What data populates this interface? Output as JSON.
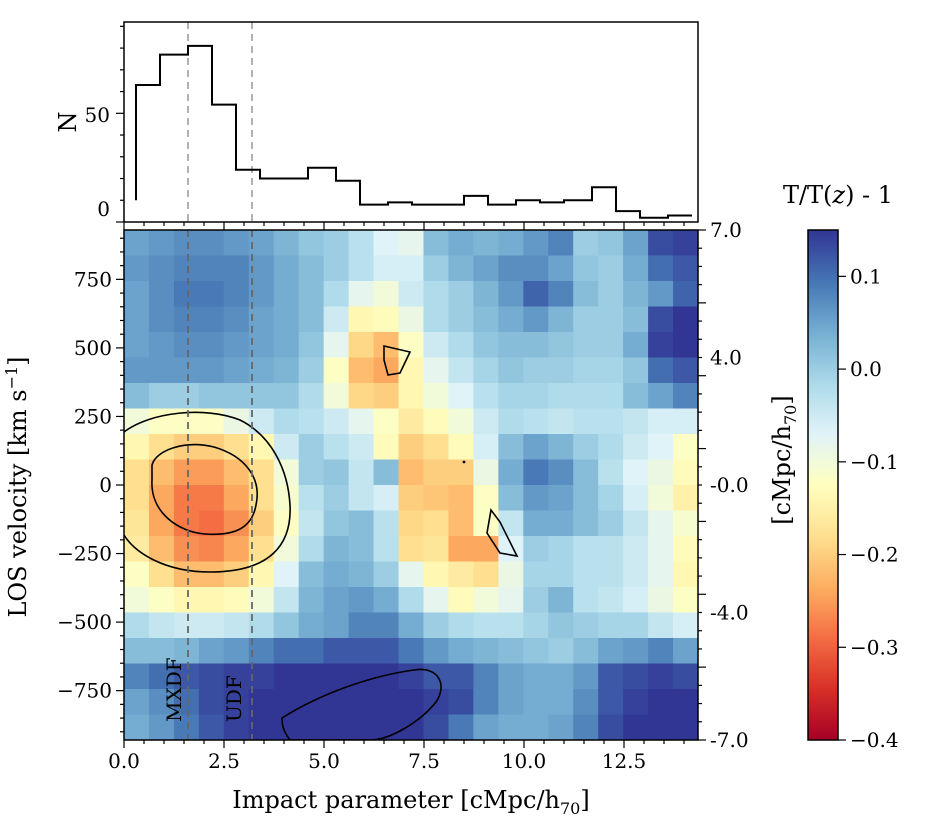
{
  "chart_data": [
    {
      "type": "histogram",
      "panel": "top",
      "ylabel": "N",
      "ylim": [
        0,
        92
      ],
      "yticks": [
        0,
        50
      ],
      "xlim": [
        0,
        14.35
      ],
      "bin_edges": [
        0.3,
        0.9,
        1.6,
        2.2,
        2.8,
        3.4,
        4.0,
        4.6,
        5.3,
        5.9,
        6.6,
        7.2,
        7.9,
        8.5,
        9.1,
        9.8,
        10.4,
        11.0,
        11.7,
        12.3,
        12.9,
        13.6,
        14.2
      ],
      "counts": [
        63,
        77,
        81,
        54,
        24,
        20,
        20,
        25,
        19,
        8,
        9,
        8,
        8,
        12,
        8,
        10,
        9,
        10,
        16,
        5,
        2,
        3
      ],
      "first_bin_bottom": 10,
      "vlines": [
        1.6,
        3.2
      ]
    },
    {
      "type": "heatmap",
      "panel": "main",
      "xlabel": "Impact parameter [cMpc/h$_{70}$]",
      "ylabel": "LOS velocity [km s$^{-1}$]",
      "right_ylabel": "[cMpc/h$_{70}$]",
      "xlim": [
        0,
        14.35
      ],
      "ylim": [
        -930,
        930
      ],
      "xticks": [
        "0.0",
        "2.5",
        "5.0",
        "7.5",
        "10.0",
        "12.5"
      ],
      "yticks": [
        "−750",
        "−500",
        "−250",
        "0",
        "250",
        "500",
        "750"
      ],
      "yticks_values": [
        -750,
        -500,
        -250,
        0,
        250,
        500,
        750
      ],
      "right_yticks": [
        "7.0",
        "4.0",
        "-0.0",
        "-4.0",
        "-7.0"
      ],
      "right_yticks_values": [
        930,
        465,
        0,
        -465,
        -930
      ],
      "vlines": [
        1.6,
        3.2
      ],
      "annotations": [
        "MXDF",
        "UDF"
      ],
      "grid_x_bins": 23,
      "grid_y_bins": 20,
      "values": [
        [
          0.05,
          0.06,
          0.07,
          0.07,
          0.06,
          0.05,
          0.03,
          0.01,
          0.0,
          -0.03,
          -0.07,
          -0.08,
          0.02,
          0.04,
          0.03,
          0.04,
          0.06,
          0.08,
          0.0,
          0.01,
          0.05,
          0.13,
          0.14
        ],
        [
          0.06,
          0.07,
          0.08,
          0.08,
          0.08,
          0.06,
          0.04,
          0.02,
          0.0,
          -0.03,
          -0.06,
          -0.06,
          0.0,
          0.03,
          0.05,
          0.07,
          0.07,
          0.05,
          0.01,
          0.0,
          0.04,
          0.1,
          0.12
        ],
        [
          0.05,
          0.07,
          0.09,
          0.09,
          0.08,
          0.06,
          0.04,
          0.02,
          -0.02,
          -0.08,
          -0.1,
          -0.05,
          -0.02,
          0.0,
          0.03,
          0.06,
          0.11,
          0.08,
          0.02,
          0.0,
          0.03,
          0.06,
          0.11
        ],
        [
          0.05,
          0.07,
          0.08,
          0.08,
          0.07,
          0.05,
          0.04,
          0.02,
          -0.05,
          -0.14,
          -0.13,
          -0.09,
          -0.02,
          0.0,
          0.02,
          0.04,
          0.06,
          0.03,
          0.0,
          0.0,
          0.02,
          0.13,
          0.15
        ],
        [
          0.05,
          0.06,
          0.07,
          0.07,
          0.06,
          0.05,
          0.04,
          0.01,
          -0.08,
          -0.19,
          -0.22,
          -0.12,
          -0.05,
          -0.02,
          0.01,
          0.02,
          0.02,
          0.01,
          0.0,
          0.0,
          0.04,
          0.14,
          0.15
        ],
        [
          0.06,
          0.06,
          0.06,
          0.06,
          0.05,
          0.04,
          0.03,
          0.0,
          -0.12,
          -0.22,
          -0.24,
          -0.14,
          -0.08,
          -0.04,
          -0.01,
          0.01,
          0.0,
          0.0,
          -0.01,
          -0.01,
          0.01,
          0.1,
          0.12
        ],
        [
          0.02,
          0.0,
          0.0,
          0.01,
          0.01,
          0.01,
          0.01,
          -0.02,
          -0.1,
          -0.19,
          -0.2,
          -0.14,
          -0.1,
          -0.07,
          -0.03,
          -0.01,
          -0.01,
          -0.02,
          -0.02,
          -0.02,
          0.02,
          0.05,
          0.08
        ],
        [
          -0.1,
          -0.12,
          -0.12,
          -0.12,
          -0.09,
          -0.05,
          -0.02,
          -0.03,
          -0.05,
          -0.08,
          -0.12,
          -0.16,
          -0.13,
          -0.1,
          -0.05,
          -0.02,
          -0.03,
          -0.04,
          -0.03,
          -0.03,
          -0.04,
          -0.06,
          -0.06
        ],
        [
          -0.14,
          -0.18,
          -0.2,
          -0.2,
          -0.18,
          -0.14,
          -0.05,
          0.0,
          -0.03,
          -0.05,
          -0.13,
          -0.2,
          -0.18,
          -0.13,
          -0.06,
          0.02,
          0.05,
          0.03,
          0.0,
          -0.02,
          -0.05,
          -0.07,
          -0.12
        ],
        [
          -0.18,
          -0.22,
          -0.25,
          -0.25,
          -0.22,
          -0.18,
          -0.1,
          0.0,
          0.01,
          -0.04,
          0.02,
          -0.22,
          -0.2,
          -0.2,
          -0.09,
          0.04,
          0.09,
          0.07,
          0.02,
          -0.03,
          -0.07,
          -0.09,
          -0.13
        ],
        [
          -0.18,
          -0.24,
          -0.28,
          -0.28,
          -0.24,
          -0.18,
          -0.11,
          -0.03,
          0.0,
          -0.04,
          -0.06,
          -0.2,
          -0.21,
          -0.22,
          -0.12,
          0.02,
          0.06,
          0.05,
          0.02,
          -0.01,
          -0.06,
          -0.1,
          -0.15
        ],
        [
          -0.17,
          -0.24,
          -0.28,
          -0.29,
          -0.26,
          -0.2,
          -0.12,
          -0.04,
          0.01,
          0.02,
          -0.03,
          -0.19,
          -0.18,
          -0.22,
          -0.12,
          -0.04,
          0.04,
          0.04,
          0.02,
          0.0,
          -0.04,
          -0.08,
          -0.11
        ],
        [
          -0.16,
          -0.22,
          -0.26,
          -0.27,
          -0.24,
          -0.18,
          -0.1,
          -0.02,
          0.03,
          0.02,
          -0.03,
          -0.18,
          -0.17,
          -0.24,
          -0.24,
          -0.07,
          0.0,
          -0.01,
          -0.03,
          -0.03,
          -0.05,
          -0.08,
          -0.13
        ],
        [
          -0.12,
          -0.18,
          -0.22,
          -0.22,
          -0.2,
          -0.14,
          -0.07,
          0.02,
          0.04,
          0.03,
          0.0,
          -0.08,
          -0.14,
          -0.16,
          -0.18,
          -0.09,
          -0.01,
          -0.01,
          -0.03,
          -0.03,
          -0.05,
          -0.08,
          -0.14
        ],
        [
          -0.1,
          -0.12,
          -0.14,
          -0.14,
          -0.13,
          -0.1,
          -0.04,
          0.03,
          0.05,
          0.06,
          0.04,
          -0.02,
          -0.08,
          -0.13,
          -0.1,
          -0.08,
          0.0,
          0.03,
          -0.03,
          -0.04,
          -0.06,
          -0.09,
          -0.12
        ],
        [
          -0.02,
          -0.04,
          -0.05,
          -0.05,
          -0.04,
          -0.02,
          0.01,
          0.04,
          0.05,
          0.08,
          0.08,
          0.04,
          0.0,
          -0.02,
          -0.03,
          -0.03,
          -0.01,
          0.01,
          0.0,
          -0.01,
          -0.01,
          -0.04,
          -0.06
        ],
        [
          0.02,
          0.02,
          0.03,
          0.05,
          0.06,
          0.08,
          0.1,
          0.1,
          0.12,
          0.12,
          0.12,
          0.09,
          0.06,
          0.04,
          0.03,
          0.02,
          0.01,
          0.0,
          0.02,
          0.05,
          0.06,
          0.08,
          0.05
        ],
        [
          0.08,
          0.1,
          0.12,
          0.13,
          0.14,
          0.14,
          0.15,
          0.15,
          0.15,
          0.15,
          0.15,
          0.14,
          0.12,
          0.12,
          0.08,
          0.05,
          0.04,
          0.04,
          0.06,
          0.12,
          0.13,
          0.14,
          0.13
        ],
        [
          0.05,
          0.07,
          0.1,
          0.13,
          0.14,
          0.15,
          0.15,
          0.15,
          0.15,
          0.15,
          0.15,
          0.15,
          0.14,
          0.13,
          0.08,
          0.05,
          0.04,
          0.04,
          0.07,
          0.12,
          0.14,
          0.15,
          0.15
        ],
        [
          0.04,
          0.06,
          0.09,
          0.12,
          0.14,
          0.15,
          0.15,
          0.15,
          0.15,
          0.15,
          0.15,
          0.15,
          0.13,
          0.09,
          0.05,
          0.04,
          0.04,
          0.05,
          0.08,
          0.13,
          0.15,
          0.15,
          0.15
        ]
      ],
      "colormap": "RdYlBu",
      "contour_levels": [
        -0.2,
        -0.25
      ]
    },
    {
      "type": "colorbar",
      "title": "T/T(z) - 1",
      "title_main": "T/T(",
      "title_var": "z",
      "title_tail": ") - 1",
      "range": [
        -0.4,
        0.15
      ],
      "ticks": [
        "−0.4",
        "−0.3",
        "−0.2",
        "−0.1",
        "0.0",
        "0.1"
      ],
      "ticks_values": [
        -0.4,
        -0.3,
        -0.2,
        -0.1,
        0.0,
        0.1
      ]
    }
  ],
  "labels": {
    "hist_ylabel": "N",
    "hist_ytick_0": "0",
    "hist_ytick_50": "50",
    "xlabel_main": "Impact parameter [cMpc/h",
    "xlabel_sub": "70",
    "xlabel_end": "]",
    "ylabel_main": "LOS velocity [km s",
    "ylabel_sup": "−1",
    "ylabel_end": "]",
    "right_label_main": "[cMpc/h",
    "right_label_sub": "70",
    "right_label_end": "]",
    "mxdf": "MXDF",
    "udf": "UDF"
  }
}
